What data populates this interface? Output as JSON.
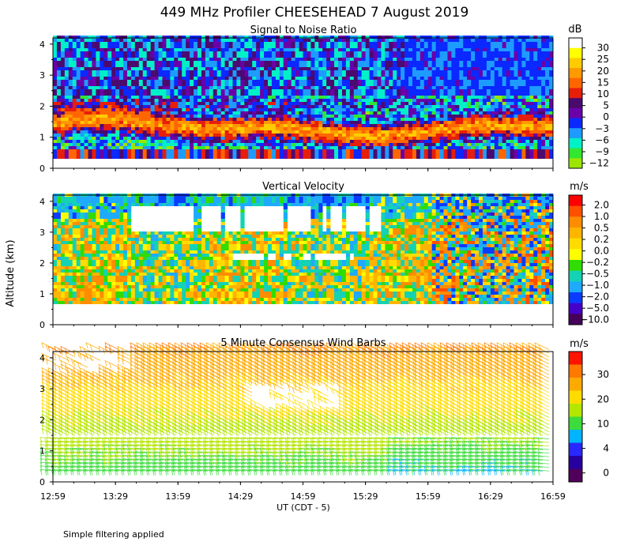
{
  "chart_data": {
    "type": "heatmap",
    "title": "449 MHz Profiler CHEESEHEAD  7 August 2019",
    "ylabel": "Altitude (km)",
    "xlabel": "UT  (CDT - 5)",
    "x_ticks": [
      "12:59",
      "13:29",
      "13:59",
      "14:29",
      "14:59",
      "15:29",
      "15:59",
      "16:29",
      "16:59"
    ],
    "y_ticks": [
      "0",
      "1",
      "2",
      "3",
      "4"
    ],
    "ylim": [
      0,
      4.2
    ],
    "note": "Simple filtering applied",
    "panels": [
      {
        "title": "Signal to Noise Ratio",
        "unit": "dB",
        "colorbar_labels": [
          "30",
          "25",
          "20",
          "15",
          "10",
          "5",
          "0",
          "−3",
          "−6",
          "−9",
          "−12"
        ],
        "colors": [
          "#ffffff",
          "#ffff00",
          "#ffcc00",
          "#ff9900",
          "#ff6600",
          "#e61e0a",
          "#4b0a6e",
          "#6a00aa",
          "#0a28ff",
          "#1e9bff",
          "#00f0c8",
          "#32e632",
          "#9be600"
        ]
      },
      {
        "title": "Vertical Velocity",
        "unit": "m/s",
        "colorbar_labels": [
          "2.0",
          "1.0",
          "0.5",
          "0.2",
          "0.0",
          "−0.2",
          "−0.5",
          "−1.0",
          "−2.0",
          "−5.0",
          "−10.0"
        ],
        "colors": [
          "#ff0000",
          "#ff5000",
          "#ff8c00",
          "#ffb400",
          "#ffdc00",
          "#ffff00",
          "#32dc00",
          "#14d2b4",
          "#1eaaff",
          "#0a3cff",
          "#4600c8",
          "#46005a"
        ]
      },
      {
        "title": "5 Minute Consensus Wind Barbs",
        "unit": "m/s",
        "colorbar_labels": [
          "30",
          "20",
          "10",
          "4",
          "0"
        ],
        "colors": [
          "#ff1400",
          "#ff7800",
          "#ffaa00",
          "#ffdc00",
          "#b4e600",
          "#3cdc3c",
          "#00b4ff",
          "#2828ff",
          "#2800a0",
          "#50005a"
        ]
      }
    ]
  }
}
